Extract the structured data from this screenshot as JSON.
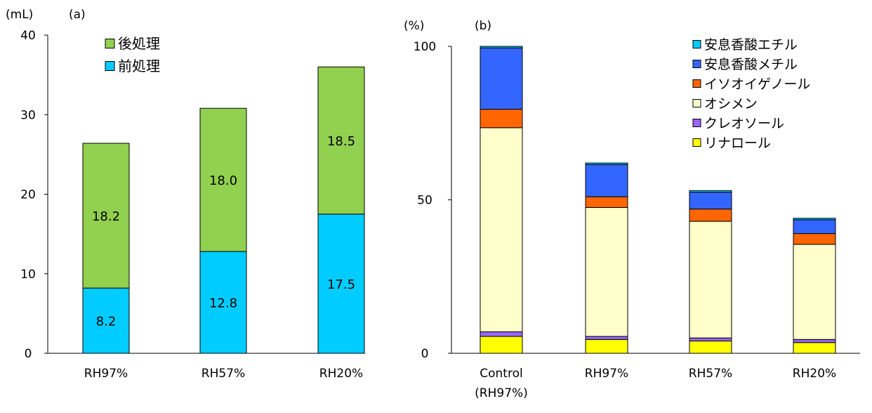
{
  "chart_data": [
    {
      "type": "bar",
      "stacked": true,
      "panel_label": "(a)",
      "unit_label": "(mL)",
      "categories": [
        "RH97%",
        "RH57%",
        "RH20%"
      ],
      "ylim": [
        0,
        40
      ],
      "yticks": [
        "0",
        "10",
        "20",
        "30",
        "40"
      ],
      "grid": false,
      "legend_position": "top-left",
      "series": [
        {
          "name": "前処理",
          "values": [
            8.2,
            12.8,
            17.5
          ],
          "color": "#00CCFF",
          "labels": [
            "8.2",
            "12.8",
            "17.5"
          ]
        },
        {
          "name": "後処理",
          "values": [
            18.2,
            18.0,
            18.5
          ],
          "color": "#92D050",
          "labels": [
            "18.2",
            "18.0",
            "18.5"
          ]
        }
      ]
    },
    {
      "type": "bar",
      "stacked": true,
      "panel_label": "(b)",
      "unit_label": "(%)",
      "categories": [
        "Control\n(RH97%)",
        "RH97%",
        "RH57%",
        "RH20%"
      ],
      "ylim": [
        0,
        100
      ],
      "yticks": [
        "0",
        "50",
        "100"
      ],
      "grid": false,
      "legend_position": "top-right",
      "series": [
        {
          "name": "リナロール",
          "values": [
            5.5,
            4.5,
            4.0,
            3.5
          ],
          "color": "#FFFF00"
        },
        {
          "name": "クレオソール",
          "values": [
            1.5,
            1.0,
            1.0,
            1.0
          ],
          "color": "#9966FF"
        },
        {
          "name": "オシメン",
          "values": [
            66.5,
            42.0,
            38.0,
            31.0
          ],
          "color": "#FFFFCC"
        },
        {
          "name": "イソオイゲノール",
          "values": [
            6.0,
            3.5,
            4.0,
            3.5
          ],
          "color": "#FF6600"
        },
        {
          "name": "安息香酸メチル",
          "values": [
            20.0,
            10.5,
            5.5,
            4.5
          ],
          "color": "#3366FF"
        },
        {
          "name": "安息香酸エチル",
          "values": [
            0.5,
            0.5,
            0.5,
            0.5
          ],
          "color": "#00CCFF"
        }
      ]
    }
  ]
}
